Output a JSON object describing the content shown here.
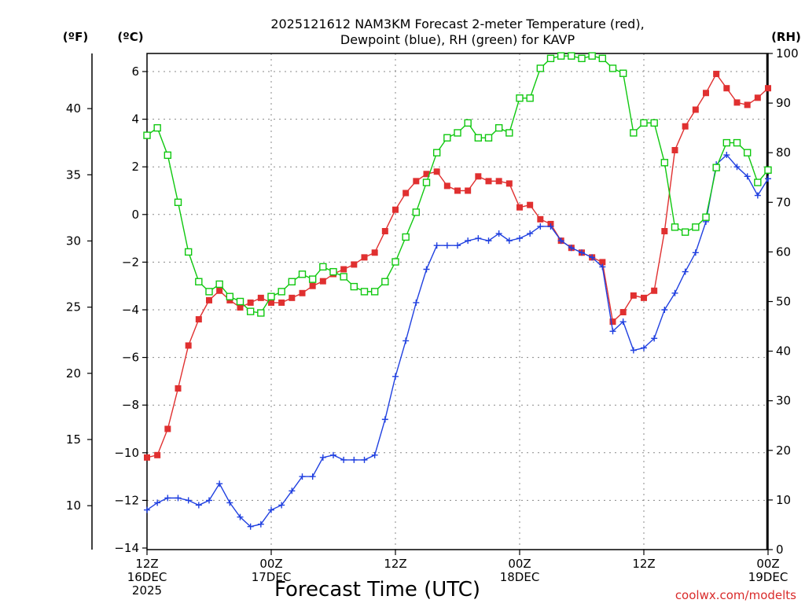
{
  "chart_data": {
    "type": "line",
    "title": [
      "2025121612 NAM3KM Forecast 2-meter Temperature (red),",
      "Dewpoint (blue), RH (green) for KAVP"
    ],
    "xlabel": "Forecast Time (UTC)",
    "credit": "coolwx.com/modelts",
    "units": {
      "fahrenheit": "(ºF)",
      "celsius": "(ºC)",
      "rh": "(RH)"
    },
    "x_range_hours": [
      0,
      60
    ],
    "x_ticks": [
      {
        "hour": 0,
        "lines": [
          "12Z",
          "16DEC",
          "2025"
        ]
      },
      {
        "hour": 12,
        "lines": [
          "00Z",
          "17DEC"
        ]
      },
      {
        "hour": 24,
        "lines": [
          "12Z"
        ]
      },
      {
        "hour": 36,
        "lines": [
          "00Z",
          "18DEC"
        ]
      },
      {
        "hour": 48,
        "lines": [
          "12Z"
        ]
      },
      {
        "hour": 60,
        "lines": [
          "00Z",
          "19DEC"
        ]
      }
    ],
    "y_left_celsius": {
      "range": [
        -14,
        6.8
      ],
      "ticks": [
        -14,
        -12,
        -10,
        -8,
        -6,
        -4,
        -2,
        0,
        2,
        4,
        6
      ],
      "tick_labels": [
        "−14",
        "−12",
        "−10",
        "−8",
        "−6",
        "−4",
        "−2",
        "0",
        "2",
        "4",
        "6"
      ]
    },
    "y_left_fahrenheit": {
      "ticks": [
        10,
        15,
        20,
        25,
        30,
        35,
        40
      ]
    },
    "y_right_rh": {
      "range": [
        0,
        100
      ],
      "ticks": [
        0,
        10,
        20,
        30,
        40,
        50,
        60,
        70,
        80,
        90,
        100
      ]
    },
    "grid": true,
    "colors": {
      "temperature": "#e03030",
      "dewpoint": "#2040e0",
      "rh": "#10c810",
      "grid": "#888888"
    },
    "series": [
      {
        "name": "Temperature",
        "axis": "celsius",
        "marker": "filled-square",
        "x": [
          0,
          1,
          2,
          3,
          4,
          5,
          6,
          7,
          8,
          9,
          10,
          11,
          12,
          13,
          14,
          15,
          16,
          17,
          18,
          19,
          20,
          21,
          22,
          23,
          24,
          25,
          26,
          27,
          28,
          29,
          30,
          31,
          32,
          33,
          34,
          35,
          36,
          37,
          38,
          39,
          40,
          41,
          42,
          43,
          44,
          45,
          46,
          47,
          48,
          49,
          50,
          51,
          52,
          53,
          54,
          55,
          56,
          57,
          58,
          59,
          60
        ],
        "values": [
          -10.2,
          -10.1,
          -9.0,
          -7.3,
          -5.5,
          -4.4,
          -3.6,
          -3.2,
          -3.6,
          -3.9,
          -3.7,
          -3.5,
          -3.7,
          -3.7,
          -3.5,
          -3.3,
          -3.0,
          -2.8,
          -2.5,
          -2.3,
          -2.1,
          -1.8,
          -1.6,
          -0.7,
          0.2,
          0.9,
          1.4,
          1.7,
          1.8,
          1.2,
          1.0,
          1.0,
          1.6,
          1.4,
          1.4,
          1.3,
          0.3,
          0.4,
          -0.2,
          -0.4,
          -1.1,
          -1.4,
          -1.6,
          -1.8,
          -2.0,
          -4.5,
          -4.1,
          -3.4,
          -3.5,
          -3.2,
          -0.7,
          2.7,
          3.7,
          4.4,
          5.1,
          5.9,
          5.3,
          4.7,
          4.6,
          4.9,
          5.3
        ]
      },
      {
        "name": "Dewpoint",
        "axis": "celsius",
        "marker": "plus",
        "x": [
          0,
          1,
          2,
          3,
          4,
          5,
          6,
          7,
          8,
          9,
          10,
          11,
          12,
          13,
          14,
          15,
          16,
          17,
          18,
          19,
          20,
          21,
          22,
          23,
          24,
          25,
          26,
          27,
          28,
          29,
          30,
          31,
          32,
          33,
          34,
          35,
          36,
          37,
          38,
          39,
          40,
          41,
          42,
          43,
          44,
          45,
          46,
          47,
          48,
          49,
          50,
          51,
          52,
          53,
          54,
          55,
          56,
          57,
          58,
          59,
          60
        ],
        "values": [
          -12.4,
          -12.1,
          -11.9,
          -11.9,
          -12.0,
          -12.2,
          -12.0,
          -11.3,
          -12.1,
          -12.7,
          -13.1,
          -13.0,
          -12.4,
          -12.2,
          -11.6,
          -11.0,
          -11.0,
          -10.2,
          -10.1,
          -10.3,
          -10.3,
          -10.3,
          -10.1,
          -8.6,
          -6.8,
          -5.3,
          -3.7,
          -2.3,
          -1.3,
          -1.3,
          -1.3,
          -1.1,
          -1.0,
          -1.1,
          -0.8,
          -1.1,
          -1.0,
          -0.8,
          -0.5,
          -0.5,
          -1.1,
          -1.4,
          -1.6,
          -1.8,
          -2.2,
          -4.9,
          -4.5,
          -5.7,
          -5.6,
          -5.2,
          -4.0,
          -3.3,
          -2.4,
          -1.6,
          -0.3,
          2.1,
          2.5,
          2.0,
          1.6,
          0.8,
          1.5
        ]
      },
      {
        "name": "RH",
        "axis": "rh",
        "marker": "open-square",
        "x": [
          0,
          1,
          2,
          3,
          4,
          5,
          6,
          7,
          8,
          9,
          10,
          11,
          12,
          13,
          14,
          15,
          16,
          17,
          18,
          19,
          20,
          21,
          22,
          23,
          24,
          25,
          26,
          27,
          28,
          29,
          30,
          31,
          32,
          33,
          34,
          35,
          36,
          37,
          38,
          39,
          40,
          41,
          42,
          43,
          44,
          45,
          46,
          47,
          48,
          49,
          50,
          51,
          52,
          53,
          54,
          55,
          56,
          57,
          58,
          59,
          60
        ],
        "values": [
          83.5,
          85,
          79.5,
          70,
          60,
          54,
          52,
          53.5,
          51,
          50,
          48,
          47.7,
          51,
          52,
          54,
          55.5,
          54.5,
          57,
          56,
          55,
          53,
          52,
          52,
          54,
          58,
          63,
          68,
          74,
          80,
          83,
          84,
          86,
          83,
          83,
          85,
          84,
          91,
          91,
          97,
          99,
          99.5,
          99.5,
          99,
          99.5,
          99,
          97,
          96,
          84,
          86,
          86,
          78,
          65,
          64,
          65,
          67,
          77,
          82,
          82,
          80,
          74,
          76.5
        ]
      }
    ]
  }
}
